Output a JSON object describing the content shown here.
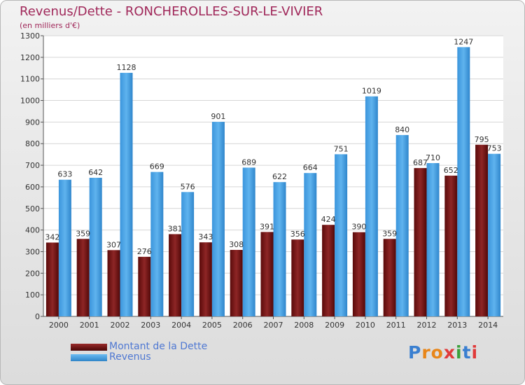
{
  "title": "Revenus/Dette - RONCHEROLLES-SUR-LE-VIVIER",
  "subtitle": "(en milliers d'€)",
  "logo": {
    "text": "Proxiti",
    "letters": [
      "P",
      "r",
      "o",
      "x",
      "i",
      "t",
      "i"
    ],
    "colors": [
      "#3a7fd0",
      "#e8861a",
      "#e8861a",
      "#e03a3a",
      "#3aa03a",
      "#3a7fd0",
      "#e03a3a"
    ]
  },
  "colors": {
    "dette": "#7a1818",
    "revenus": "#4ba3e6",
    "title": "#a0285a",
    "legend_text": "#4f78d2"
  },
  "legend": [
    {
      "label": "Montant de la Dette",
      "color": "#7a1818"
    },
    {
      "label": "Revenus",
      "color": "#4ba3e6"
    }
  ],
  "chart_data": {
    "type": "bar",
    "categories": [
      "2000",
      "2001",
      "2002",
      "2003",
      "2004",
      "2005",
      "2006",
      "2007",
      "2008",
      "2009",
      "2010",
      "2011",
      "2012",
      "2013",
      "2014"
    ],
    "series": [
      {
        "name": "Montant de la Dette",
        "values": [
          342,
          359,
          307,
          276,
          381,
          343,
          308,
          391,
          356,
          424,
          390,
          359,
          687,
          652,
          795
        ]
      },
      {
        "name": "Revenus",
        "values": [
          633,
          642,
          1128,
          669,
          576,
          901,
          689,
          622,
          664,
          751,
          1019,
          840,
          710,
          1247,
          753
        ]
      }
    ],
    "ylim": [
      0,
      1300
    ],
    "yticks": [
      0,
      100,
      200,
      300,
      400,
      500,
      600,
      700,
      800,
      900,
      1000,
      1100,
      1200,
      1300
    ],
    "grid": true
  }
}
